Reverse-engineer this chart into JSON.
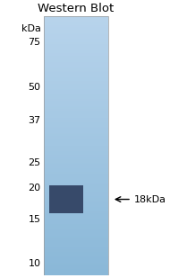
{
  "title": "Western Blot",
  "gel_color_top": "#b8d4ec",
  "gel_color_bottom": "#8ab8d8",
  "background_color": "#ffffff",
  "band_color": "#2a3a5a",
  "ladder_values": [
    75,
    50,
    37,
    25,
    20,
    15,
    10
  ],
  "ladder_labels": [
    "75",
    "50",
    "37",
    "25",
    "20",
    "15",
    "10"
  ],
  "ymin": 9,
  "ymax": 95,
  "band_kda": 18,
  "arrow_label": "18kDa",
  "title_fontsize": 9.5,
  "ladder_fontsize": 8.0,
  "band_annotation_fontsize": 8.0
}
